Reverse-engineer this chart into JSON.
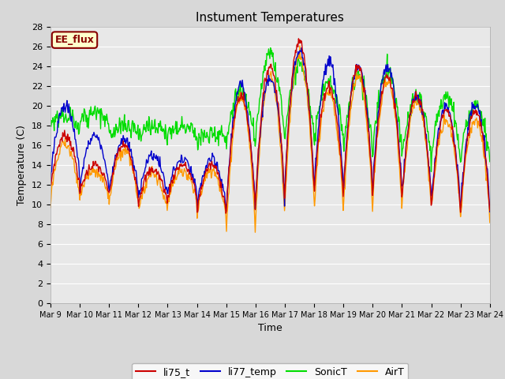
{
  "title": "Instument Temperatures",
  "xlabel": "Time",
  "ylabel": "Temperature (C)",
  "ylim": [
    0,
    28
  ],
  "xtick_labels": [
    "Mar 9",
    "Mar 10",
    "Mar 11",
    "Mar 12",
    "Mar 13",
    "Mar 14",
    "Mar 15",
    "Mar 16",
    "Mar 17",
    "Mar 18",
    "Mar 19",
    "Mar 20",
    "Mar 21",
    "Mar 22",
    "Mar 23",
    "Mar 24"
  ],
  "series_colors": {
    "li75_t": "#cc0000",
    "li77_temp": "#0000cc",
    "SonicT": "#00dd00",
    "AirT": "#ff9900"
  },
  "annotation_text": "EE_flux",
  "annotation_bg": "#ffffcc",
  "annotation_border": "#880000",
  "fig_bg": "#d8d8d8",
  "plot_bg": "#e8e8e8",
  "grid_color": "#ffffff",
  "linewidth": 1.0,
  "legend_series": [
    "li75_t",
    "li77_temp",
    "SonicT",
    "AirT"
  ],
  "n_days": 15,
  "n_per_day": 48,
  "day_bases_red": [
    11.5,
    11.0,
    10.5,
    10.0,
    10.5,
    9.0,
    9.0,
    10.0,
    11.0,
    10.5,
    10.5,
    10.5,
    10.0,
    9.0,
    9.0
  ],
  "day_peaks_red": [
    17.0,
    14.0,
    16.0,
    13.5,
    14.0,
    14.0,
    21.0,
    24.0,
    26.5,
    22.0,
    24.0,
    23.0,
    21.0,
    19.5,
    19.5
  ],
  "day_bases_blue": [
    12.5,
    11.5,
    11.0,
    10.5,
    11.0,
    9.5,
    9.0,
    10.0,
    11.5,
    11.0,
    11.0,
    11.0,
    10.5,
    9.5,
    9.5
  ],
  "day_peaks_blue": [
    20.0,
    17.0,
    16.5,
    15.0,
    14.5,
    14.5,
    22.0,
    23.0,
    25.5,
    24.5,
    24.0,
    24.0,
    21.0,
    20.0,
    20.0
  ],
  "day_bases_orange": [
    10.5,
    10.5,
    10.0,
    9.0,
    10.0,
    8.5,
    6.5,
    8.0,
    9.5,
    9.0,
    9.0,
    9.5,
    9.5,
    8.5,
    8.5
  ],
  "day_peaks_orange": [
    16.0,
    13.5,
    15.5,
    13.0,
    13.5,
    13.5,
    21.0,
    23.0,
    25.0,
    21.5,
    23.0,
    22.5,
    20.5,
    18.5,
    18.5
  ],
  "sonic_day_bases": [
    18.0,
    18.0,
    17.0,
    17.0,
    17.0,
    16.5,
    15.5,
    16.0,
    16.0,
    16.0,
    15.0,
    15.0,
    14.5,
    14.0,
    14.5
  ],
  "sonic_day_peaks": [
    22.0,
    22.5,
    21.0,
    20.5,
    20.0,
    18.5,
    21.5,
    25.0,
    24.0,
    22.5,
    23.0,
    23.5,
    21.0,
    21.0,
    20.0
  ]
}
